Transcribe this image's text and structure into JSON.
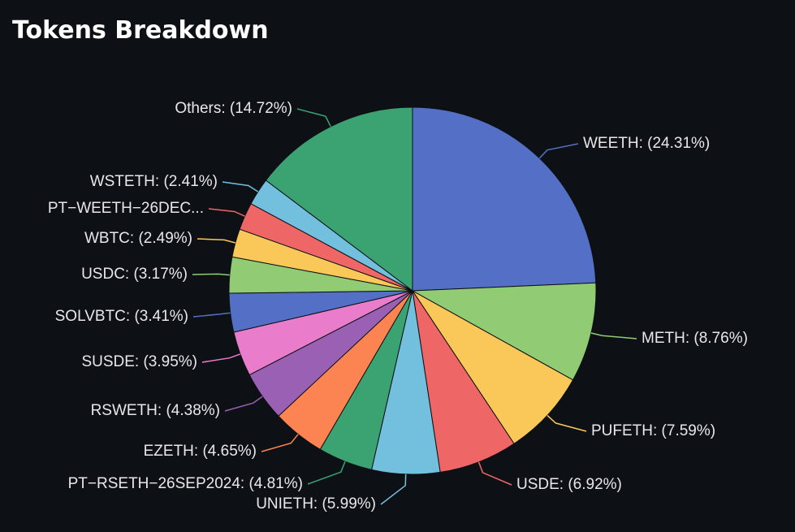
{
  "chart_data": {
    "type": "pie",
    "title": "Tokens Breakdown",
    "slices": [
      {
        "name": "WEETH",
        "value": 24.31,
        "label": "WEETH: (24.31%)",
        "color": "#5470c6"
      },
      {
        "name": "METH",
        "value": 8.76,
        "label": "METH: (8.76%)",
        "color": "#91cc75"
      },
      {
        "name": "PUFETH",
        "value": 7.59,
        "label": "PUFETH: (7.59%)",
        "color": "#fac858"
      },
      {
        "name": "USDE",
        "value": 6.92,
        "label": "USDE: (6.92%)",
        "color": "#ee6666"
      },
      {
        "name": "UNIETH",
        "value": 5.99,
        "label": "UNIETH: (5.99%)",
        "color": "#73c0de"
      },
      {
        "name": "PT-RSETH-26SEP2024",
        "value": 4.81,
        "label": "PT−RSETH−26SEP2024: (4.81%)",
        "color": "#3ba272"
      },
      {
        "name": "EZETH",
        "value": 4.65,
        "label": "EZETH: (4.65%)",
        "color": "#fc8452"
      },
      {
        "name": "RSWETH",
        "value": 4.38,
        "label": "RSWETH: (4.38%)",
        "color": "#9a60b4"
      },
      {
        "name": "SUSDE",
        "value": 3.95,
        "label": "SUSDE: (3.95%)",
        "color": "#ea7ccc"
      },
      {
        "name": "SOLVBTC",
        "value": 3.41,
        "label": "SOLVBTC: (3.41%)",
        "color": "#5470c6"
      },
      {
        "name": "USDC",
        "value": 3.17,
        "label": "USDC: (3.17%)",
        "color": "#91cc75"
      },
      {
        "name": "WBTC",
        "value": 2.49,
        "label": "WBTC: (2.49%)",
        "color": "#fac858"
      },
      {
        "name": "PT-WEETH-26DEC",
        "value": 2.42,
        "label": "PT−WEETH−26DEC...",
        "color": "#ee6666"
      },
      {
        "name": "WSTETH",
        "value": 2.41,
        "label": "WSTETH: (2.41%)",
        "color": "#73c0de"
      },
      {
        "name": "Others",
        "value": 14.72,
        "label": "Others: (14.72%)",
        "color": "#3ba272"
      }
    ]
  }
}
